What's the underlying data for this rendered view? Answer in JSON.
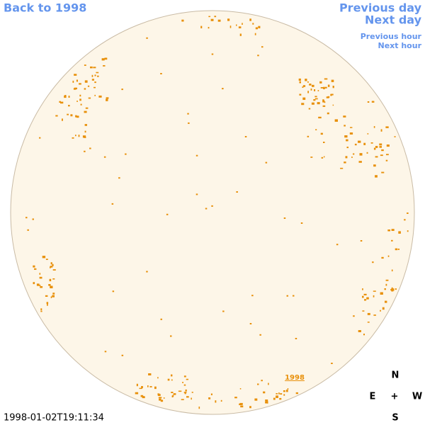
{
  "nav": {
    "back": "Back to 1998",
    "previous_day": "Previous day",
    "next_day": "Next day",
    "previous_hour": "Previous hour",
    "next_hour": "Next hour"
  },
  "disk_label": "1998",
  "timestamp": "1998-01-02T19:11:34",
  "compass": {
    "north": "N",
    "east": "E",
    "center": "+",
    "west": "W",
    "south": "S"
  }
}
